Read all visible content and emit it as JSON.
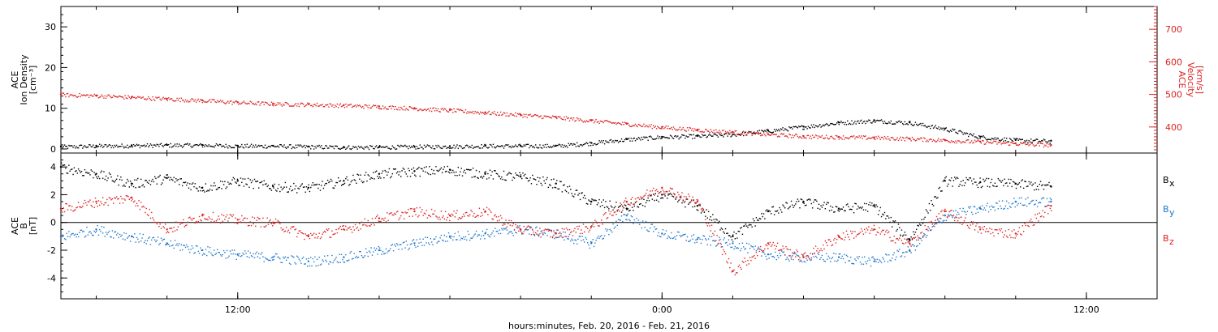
{
  "chart_data": {
    "type": "scatter",
    "time_axis": {
      "label": "hours:minutes, Feb. 20, 2016 - Feb. 21, 2016",
      "range_hours": [
        7,
        38
      ],
      "ticks": [
        {
          "hour": 12,
          "label": "12:00"
        },
        {
          "hour": 24,
          "label": "0:00"
        },
        {
          "hour": 36,
          "label": "12:00"
        }
      ]
    },
    "panels": [
      {
        "name": "top",
        "left_axis": {
          "label_lines": [
            "ACE",
            "Ion Density",
            "[cm⁻³]"
          ],
          "range": [
            -1,
            35
          ],
          "ticks": [
            0,
            10,
            20,
            30
          ],
          "color": "#000000"
        },
        "right_axis": {
          "label_lines": [
            "ACE",
            "Velocity",
            "[km/s]"
          ],
          "range": [
            320,
            770
          ],
          "ticks": [
            400,
            500,
            600,
            700
          ],
          "color": "#dd2222"
        },
        "series": [
          {
            "color": "#000000",
            "axis": "left",
            "x": [
              7,
              8,
              9,
              10,
              11,
              12,
              13,
              14,
              15,
              16,
              17,
              18,
              19,
              20,
              21,
              22,
              23,
              24,
              25,
              26,
              27,
              28,
              29,
              30,
              31,
              32,
              33,
              34,
              35
            ],
            "y": [
              0.6,
              0.8,
              0.9,
              1.0,
              1.0,
              0.8,
              0.8,
              0.6,
              0.5,
              0.5,
              0.6,
              0.7,
              0.8,
              0.8,
              0.8,
              1.5,
              2.4,
              3.0,
              3.2,
              3.6,
              4.5,
              5.5,
              6.5,
              7.0,
              6.5,
              5.0,
              3.0,
              2.2,
              2.0
            ]
          },
          {
            "color": "#dd2222",
            "axis": "right",
            "x": [
              7,
              8,
              9,
              10,
              11,
              12,
              13,
              14,
              15,
              16,
              17,
              18,
              19,
              20,
              21,
              22,
              23,
              24,
              25,
              26,
              27,
              28,
              29,
              30,
              31,
              32,
              33,
              34,
              35
            ],
            "y": [
              500,
              497,
              492,
              487,
              482,
              476,
              472,
              470,
              467,
              463,
              458,
              452,
              445,
              438,
              430,
              420,
              410,
              400,
              392,
              385,
              378,
              372,
              370,
              368,
              365,
              360,
              355,
              350,
              345
            ]
          }
        ]
      },
      {
        "name": "bottom",
        "left_axis": {
          "label_lines": [
            "ACE",
            "B",
            "[nT]"
          ],
          "range": [
            -5.5,
            5
          ],
          "ticks": [
            -4,
            -2,
            0,
            2,
            4
          ],
          "color": "#000000"
        },
        "zero_line": true,
        "legend": [
          {
            "label": "B",
            "sub": "x",
            "color": "#000000"
          },
          {
            "label": "B",
            "sub": "y",
            "color": "#2277cc"
          },
          {
            "label": "B",
            "sub": "z",
            "color": "#dd2222"
          }
        ],
        "series": [
          {
            "name_label": "Bx",
            "color": "#000000",
            "x": [
              7,
              8,
              9,
              10,
              11,
              12,
              13,
              14,
              15,
              16,
              17,
              18,
              19,
              20,
              21,
              22,
              23,
              24,
              25,
              26,
              27,
              28,
              29,
              30,
              31,
              32,
              33,
              34,
              35
            ],
            "y": [
              4.0,
              3.5,
              2.8,
              3.2,
              2.5,
              3.0,
              2.6,
              2.5,
              3.0,
              3.5,
              3.7,
              3.8,
              3.5,
              3.3,
              2.8,
              1.5,
              1.0,
              2.0,
              1.2,
              -1.0,
              0.8,
              1.5,
              1.0,
              1.2,
              -1.2,
              3.0,
              2.9,
              2.8,
              2.6
            ]
          },
          {
            "name_label": "By",
            "color": "#2277cc",
            "x": [
              7,
              8,
              9,
              10,
              11,
              12,
              13,
              14,
              15,
              16,
              17,
              18,
              19,
              20,
              21,
              22,
              23,
              24,
              25,
              26,
              27,
              28,
              29,
              30,
              31,
              32,
              33,
              34,
              35
            ],
            "y": [
              -1.0,
              -0.5,
              -1.0,
              -1.5,
              -2.0,
              -2.3,
              -2.5,
              -2.8,
              -2.5,
              -2.0,
              -1.5,
              -1.0,
              -0.8,
              -0.5,
              -0.8,
              -1.5,
              0.5,
              -0.8,
              -1.2,
              -1.5,
              -2.3,
              -2.5,
              -2.5,
              -2.8,
              -2.0,
              0.5,
              1.0,
              1.5,
              1.5
            ]
          },
          {
            "name_label": "Bz",
            "color": "#dd2222",
            "x": [
              7,
              8,
              9,
              10,
              11,
              12,
              13,
              14,
              15,
              16,
              17,
              18,
              19,
              20,
              21,
              22,
              23,
              24,
              25,
              26,
              27,
              28,
              29,
              30,
              31,
              32,
              33,
              34,
              35
            ],
            "y": [
              1.0,
              1.5,
              1.8,
              -0.5,
              0.5,
              0.2,
              0.0,
              -1.0,
              -0.5,
              0.3,
              0.8,
              0.5,
              0.8,
              -0.5,
              -0.8,
              -0.3,
              1.5,
              2.5,
              1.5,
              -3.5,
              -1.5,
              -2.5,
              -1.0,
              -0.5,
              -1.5,
              0.8,
              -0.5,
              -0.8,
              1.2
            ]
          }
        ]
      }
    ]
  }
}
